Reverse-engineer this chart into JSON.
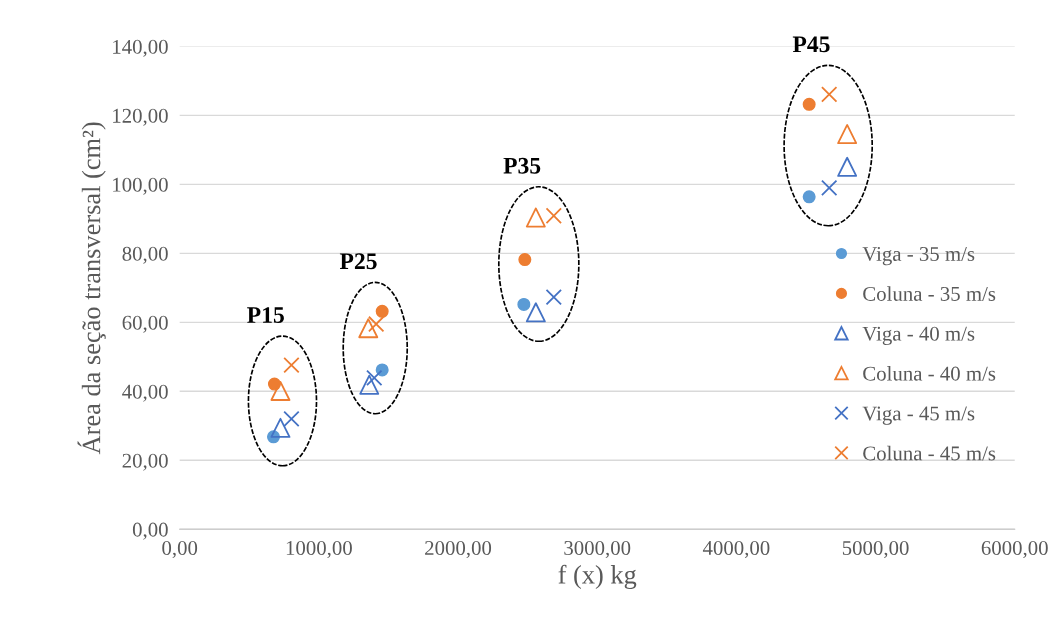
{
  "chart_data": {
    "type": "scatter",
    "xlabel": "f (x) kg",
    "ylabel": "Área da seção transversal (cm²)",
    "xlim": [
      0,
      6000
    ],
    "ylim": [
      0,
      140
    ],
    "xticks": [
      {
        "value": 0,
        "label": "0,00"
      },
      {
        "value": 1000,
        "label": "1000,00"
      },
      {
        "value": 2000,
        "label": "2000,00"
      },
      {
        "value": 3000,
        "label": "3000,00"
      },
      {
        "value": 4000,
        "label": "4000,00"
      },
      {
        "value": 5000,
        "label": "5000,00"
      },
      {
        "value": 6000,
        "label": "6000,00"
      }
    ],
    "yticks": [
      {
        "value": 0,
        "label": "0,00"
      },
      {
        "value": 20,
        "label": "20,00"
      },
      {
        "value": 40,
        "label": "40,00"
      },
      {
        "value": 60,
        "label": "60,00"
      },
      {
        "value": 80,
        "label": "80,00"
      },
      {
        "value": 100,
        "label": "100,00"
      },
      {
        "value": 120,
        "label": "120,00"
      },
      {
        "value": 140,
        "label": "140,00"
      }
    ],
    "grid": "y",
    "legend": "right",
    "series": [
      {
        "name": "Viga - 35 m/s",
        "color": "#5b9bd5",
        "marker": "circle",
        "x": [
          674,
          1455,
          2473,
          4523
        ],
        "values": [
          26.8,
          46.2,
          65.2,
          96.4
        ]
      },
      {
        "name": "Coluna - 35 m/s",
        "color": "#ed7d31",
        "marker": "circle",
        "x": [
          681,
          1455,
          2480,
          4523
        ],
        "values": [
          42.1,
          63.2,
          78.2,
          123.2
        ]
      },
      {
        "name": "Viga - 40 m/s",
        "color": "#4472c4",
        "marker": "triangle",
        "x": [
          724,
          1362,
          2559,
          4796
        ],
        "values": [
          29.4,
          41.9,
          62.9,
          105.1
        ]
      },
      {
        "name": "Coluna - 40 m/s",
        "color": "#ed7d31",
        "marker": "triangle",
        "x": [
          724,
          1355,
          2559,
          4796
        ],
        "values": [
          40.1,
          58.3,
          90.4,
          114.6
        ]
      },
      {
        "name": "Viga - 45 m/s",
        "color": "#4472c4",
        "marker": "cross",
        "x": [
          803,
          1398,
          2688,
          4667
        ],
        "values": [
          32.0,
          43.9,
          67.3,
          99.0
        ]
      },
      {
        "name": "Coluna - 45 m/s",
        "color": "#ed7d31",
        "marker": "cross",
        "x": [
          803,
          1412,
          2688,
          4667
        ],
        "values": [
          47.6,
          59.5,
          90.9,
          126.1
        ]
      }
    ],
    "annotations": [
      "P15",
      "P25",
      "P35",
      "P45"
    ]
  }
}
